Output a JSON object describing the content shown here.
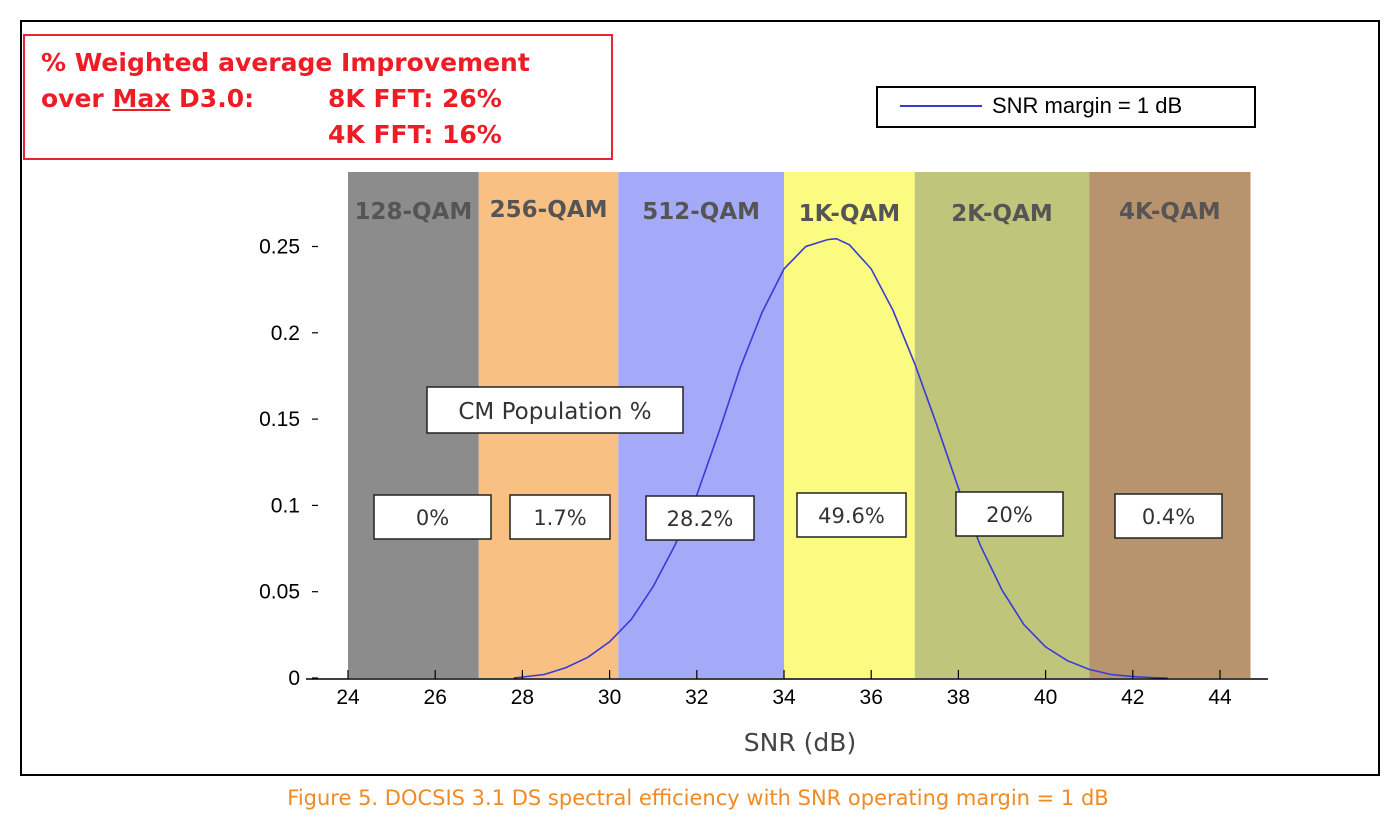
{
  "improvement": {
    "line1": "% Weighted average Improvement",
    "line2_pre": "over ",
    "line2_max": "Max",
    "line2_post": " D3.0:",
    "fft8k": "8K FFT:  26%",
    "fft4k": "4K FFT:  16%"
  },
  "legend": {
    "label": "SNR margin = 1 dB"
  },
  "caption": "Figure 5. DOCSIS 3.1 DS spectral efficiency with SNR operating margin = 1 dB",
  "chart_data": {
    "type": "line",
    "xlabel": "SNR (dB)",
    "ylabel": "",
    "xlim": [
      23.5,
      45.2
    ],
    "ylim": [
      0,
      0.3
    ],
    "x_ticks": [
      24,
      26,
      28,
      30,
      32,
      34,
      36,
      38,
      40,
      42,
      44
    ],
    "y_ticks": [
      0,
      0.05,
      0.1,
      0.15,
      0.2,
      0.25
    ],
    "y_tick_labels": [
      "0",
      "0.05",
      "0.1",
      "0.15",
      "0.2",
      "0.25"
    ],
    "population_label": "CM Population %",
    "bands": [
      {
        "name": "128-QAM",
        "from": 24,
        "to": 27,
        "color": "#8c8c8c",
        "population": "0%"
      },
      {
        "name": "256-QAM",
        "from": 27,
        "to": 30.2,
        "color": "#f9c083",
        "population": "1.7%"
      },
      {
        "name": "512-QAM",
        "from": 30.2,
        "to": 34,
        "color": "#a5aaf8",
        "population": "28.2%"
      },
      {
        "name": "1K-QAM",
        "from": 34,
        "to": 37,
        "color": "#fbfb82",
        "population": "49.6%"
      },
      {
        "name": "2K-QAM",
        "from": 37,
        "to": 41,
        "color": "#bfc57b",
        "population": "20%"
      },
      {
        "name": "4K-QAM",
        "from": 41,
        "to": 44.7,
        "color": "#b7946e",
        "population": "0.4%"
      }
    ],
    "series": [
      {
        "name": "SNR margin = 1 dB",
        "color": "#3a3ad6",
        "x": [
          27.8,
          28.5,
          29,
          29.5,
          30,
          30.5,
          31,
          31.5,
          32,
          32.5,
          33,
          33.5,
          34,
          34.5,
          35,
          35.2,
          35.5,
          36,
          36.5,
          37,
          37.5,
          38,
          38.5,
          39,
          39.5,
          40,
          40.5,
          41,
          41.5,
          42,
          42.5,
          42.8
        ],
        "y": [
          0.0,
          0.002,
          0.006,
          0.012,
          0.021,
          0.034,
          0.053,
          0.077,
          0.106,
          0.142,
          0.18,
          0.212,
          0.237,
          0.25,
          0.254,
          0.2545,
          0.251,
          0.237,
          0.213,
          0.182,
          0.147,
          0.11,
          0.077,
          0.051,
          0.031,
          0.018,
          0.01,
          0.005,
          0.002,
          0.0008,
          0.0002,
          0.0
        ]
      }
    ]
  }
}
